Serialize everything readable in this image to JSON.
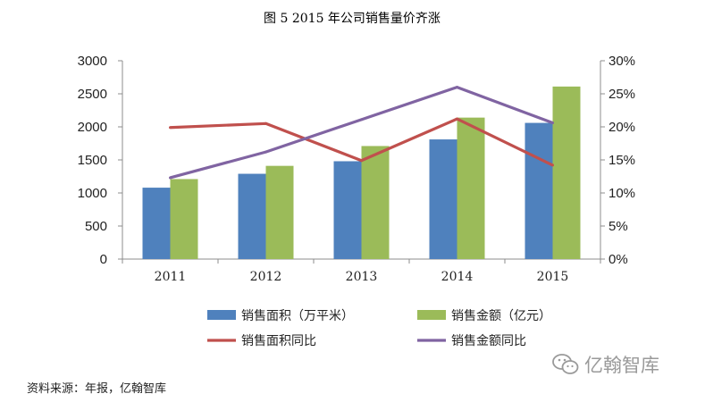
{
  "chart_data": {
    "type": "bar",
    "title": "图 5 2015 年公司销售量价齐涨",
    "categories": [
      "2011",
      "2012",
      "2013",
      "2014",
      "2015"
    ],
    "y_left": {
      "ticks": [
        "0",
        "500",
        "1000",
        "1500",
        "2000",
        "2500",
        "3000"
      ],
      "lim": [
        0,
        3000
      ]
    },
    "y_right": {
      "ticks": [
        "0%",
        "5%",
        "10%",
        "15%",
        "20%",
        "25%",
        "30%"
      ],
      "lim": [
        0,
        0.3
      ]
    },
    "series": [
      {
        "name": "销售面积（万平米）",
        "type": "bar",
        "axis": "left",
        "color": "#4f81bd",
        "values": [
          1080,
          1290,
          1480,
          1810,
          2060
        ]
      },
      {
        "name": "销售金额（亿元）",
        "type": "bar",
        "axis": "left",
        "color": "#9bbb59",
        "values": [
          1210,
          1410,
          1710,
          2140,
          2610
        ]
      },
      {
        "name": "销售面积同比",
        "type": "line",
        "axis": "right",
        "color": "#c0504d",
        "values": [
          0.199,
          0.205,
          0.149,
          0.212,
          0.142
        ]
      },
      {
        "name": "销售金额同比",
        "type": "line",
        "axis": "right",
        "color": "#8064a2",
        "values": [
          0.123,
          0.162,
          0.211,
          0.26,
          0.206
        ]
      }
    ],
    "grid": false,
    "legend_position": "bottom"
  },
  "source": "资料来源：年报，亿翰智库",
  "watermark": "亿翰智库"
}
